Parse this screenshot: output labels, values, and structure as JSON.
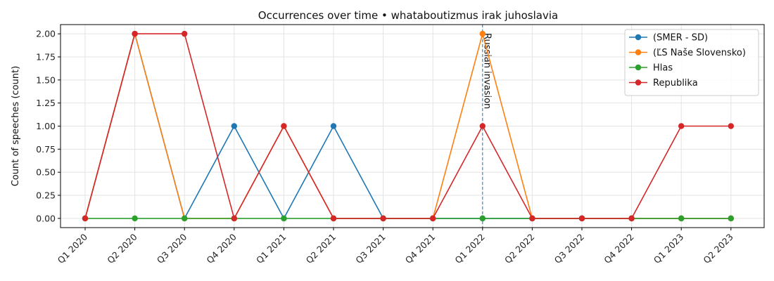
{
  "chart_data": {
    "type": "line",
    "title": "Occurrences over time • whataboutizmus irak juhoslavia",
    "xlabel": "",
    "ylabel": "Count of speeches (count)",
    "categories": [
      "Q1 2020",
      "Q2 2020",
      "Q3 2020",
      "Q4 2020",
      "Q1 2021",
      "Q2 2021",
      "Q3 2021",
      "Q4 2021",
      "Q1 2022",
      "Q2 2022",
      "Q3 2022",
      "Q4 2022",
      "Q1 2023",
      "Q2 2023"
    ],
    "ylim": [
      -0.1,
      2.1
    ],
    "yticks": [
      "0.00",
      "0.25",
      "0.50",
      "0.75",
      "1.00",
      "1.25",
      "1.50",
      "1.75",
      "2.00"
    ],
    "grid": true,
    "legend_position": "top-right",
    "series": [
      {
        "name": "(SMER - SD)",
        "color": "#1f77b4",
        "values": [
          0,
          2,
          0,
          1,
          0,
          1,
          0,
          0,
          0,
          0,
          0,
          0,
          0,
          0
        ]
      },
      {
        "name": "(ĽS Naše Slovensko)",
        "color": "#ff7f0e",
        "values": [
          0,
          2,
          0,
          0,
          1,
          0,
          0,
          0,
          2,
          0,
          0,
          0,
          0,
          0
        ]
      },
      {
        "name": "Hlas",
        "color": "#2ca02c",
        "values": [
          0,
          0,
          0,
          0,
          0,
          0,
          0,
          0,
          0,
          0,
          0,
          0,
          0,
          0
        ]
      },
      {
        "name": "Republika",
        "color": "#d62728",
        "values": [
          0,
          2,
          2,
          0,
          1,
          0,
          0,
          0,
          1,
          0,
          0,
          0,
          1,
          1
        ]
      }
    ],
    "annotations": [
      {
        "category": "Q1 2022",
        "text": "Russian invasion",
        "style": "dashed-vertical-line",
        "color": "#1f77b4"
      }
    ]
  }
}
